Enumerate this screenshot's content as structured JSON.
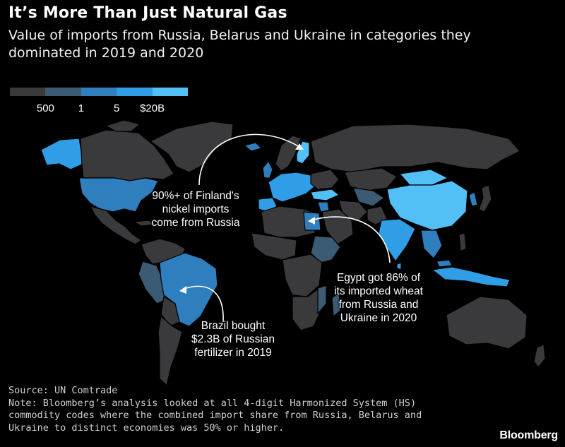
{
  "header": {
    "title": "It’s More Than Just Natural Gas",
    "subtitle": "Value of imports from Russia, Belarus and Ukraine in categories they dominated in 2019 and 2020"
  },
  "legend": {
    "ticks": [
      "500",
      "1",
      "5",
      "$20B"
    ],
    "colors": [
      "#3a3a3c",
      "#3b5a74",
      "#2f7fbf",
      "#2f9ee6",
      "#52c0f7"
    ]
  },
  "annotations": {
    "finland": [
      "90%+ of Finland's",
      "nickel imports",
      "come from Russia"
    ],
    "egypt": [
      "Egypt got 86% of",
      "its imported wheat",
      "from Russia and",
      "Ukraine in 2020"
    ],
    "brazil": [
      "Brazil bought",
      "$2.3B of Russian",
      "fertilizer in 2019"
    ]
  },
  "footer": {
    "source": "Source: UN Comtrade",
    "note": "Note: Bloomberg’s analysis looked at all 4-digit Harmonized System (HS) commodity codes where the combined import share from Russia, Belarus and Ukraine to distinct economies was 50% or higher."
  },
  "branding": {
    "logo": "Bloomberg"
  },
  "map_data": {
    "palette": {
      "lowest": "#3a3a3c",
      "low": "#3b5a74",
      "mid": "#2f7fbf",
      "high": "#2f9ee6",
      "highest": "#52c0f7",
      "border": "#000000",
      "no_data": "#000000"
    }
  }
}
